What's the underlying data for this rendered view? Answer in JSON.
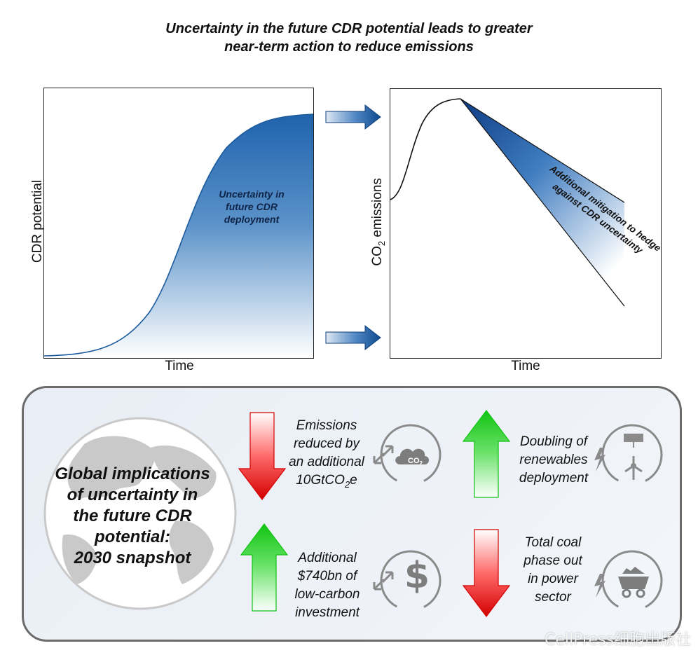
{
  "title": {
    "line1": "Uncertainty in the future CDR potential leads to greater",
    "line2": "near-term action to reduce emissions"
  },
  "left_chart": {
    "ylabel": "CDR potential",
    "xlabel": "Time",
    "annotation": [
      "Uncertainty in",
      "future CDR",
      "deployment"
    ]
  },
  "right_chart": {
    "ylabel_main": "CO",
    "ylabel_sub": "2",
    "ylabel_tail": " emissions",
    "xlabel": "Time",
    "annotation": [
      "Additional mitigation to hedge",
      "against CDR uncertainty"
    ]
  },
  "bottom": {
    "globe_text": [
      "Global implications",
      "of uncertainty in",
      "the future CDR",
      "potential:",
      "2030 snapshot"
    ],
    "emissions": {
      "lines": [
        "Emissions",
        "reduced by",
        "an additional"
      ],
      "last_main": "10GtCO",
      "last_sub": "2",
      "last_tail": "e",
      "direction": "down",
      "icon": "co2-cloud-icon",
      "icon_text": "CO",
      "icon_sub": "2"
    },
    "renewables": {
      "lines": [
        "Doubling of",
        "renewables",
        "deployment"
      ],
      "direction": "up",
      "icon": "renewables-icon"
    },
    "investment": {
      "lines": [
        "Additional",
        "$740bn of",
        "low-carbon",
        "investment"
      ],
      "direction": "up",
      "icon": "dollar-icon",
      "icon_text": "$"
    },
    "coal": {
      "lines": [
        "Total coal",
        "phase out",
        "in power",
        "sector"
      ],
      "direction": "down",
      "icon": "coal-cart-icon"
    }
  },
  "watermark": "CellPress细胞出版社",
  "colors": {
    "blue_dark": "#1f5fa8",
    "arrow_red": "#d40000",
    "arrow_green": "#11c411",
    "icon_gray": "#8a8a8a"
  }
}
